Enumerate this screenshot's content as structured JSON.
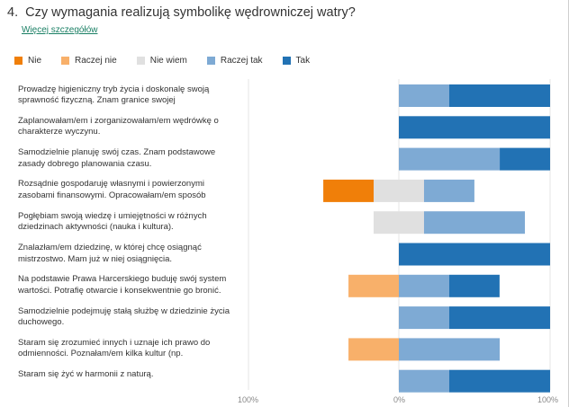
{
  "question": {
    "number": "4.",
    "title": "Czy wymagania realizują symbolikę wędrowniczej watry?",
    "more_link": "Więcej szczegółów"
  },
  "chart_data": {
    "type": "bar",
    "stacked": true,
    "diverging": true,
    "orientation": "horizontal",
    "title": "Czy wymagania realizują symbolikę wędrowniczej watry?",
    "legend_position": "top-left",
    "xlim": [
      -100,
      100
    ],
    "x_ticks": [
      "100%",
      "0%",
      "100%"
    ],
    "categories": [
      "Prowadzę higieniczny tryb życia i doskonalę swoją sprawność fizyczną. Znam granice swojej",
      "Zaplanowałam/em i zorganizowałam/em wędrówkę o charakterze wyczynu.",
      "Samodzielnie planuję swój czas. Znam podstawowe zasady dobrego planowania czasu.",
      "Rozsądnie gospodaruję własnymi i powierzonymi zasobami finansowymi. Opracowałam/em sposób",
      "Pogłębiam swoją wiedzę i umiejętności w różnych dziedzinach aktywności (nauka i kultura).",
      "Znalazłam/em dziedzinę, w której chcę osiągnąć mistrzostwo. Mam już w niej osiągnięcia.",
      "Na podstawie Prawa Harcerskiego buduję swój system wartości. Potrafię otwarcie i konsekwentnie go bronić.",
      "Samodzielnie podejmuję stałą służbę w dziedzinie życia duchowego.",
      "Staram się zrozumieć innych i uznaje ich prawo do odmienności. Poznałam/em kilka kultur (np.",
      "Staram się żyć w harmonii z naturą."
    ],
    "series": [
      {
        "name": "Nie",
        "color": "#f07f09",
        "values": [
          0,
          0,
          0,
          33.3,
          0,
          0,
          0,
          0,
          0,
          0
        ]
      },
      {
        "name": "Raczej nie",
        "color": "#f8b06a",
        "values": [
          0,
          0,
          0,
          0,
          0,
          0,
          33.3,
          0,
          33.3,
          0
        ]
      },
      {
        "name": "Nie wiem",
        "color": "#e0e0e0",
        "values": [
          0,
          0,
          0,
          33.3,
          33.3,
          0,
          0,
          0,
          0,
          0
        ]
      },
      {
        "name": "Raczej tak",
        "color": "#7eaad4",
        "values": [
          33.3,
          0,
          66.7,
          33.3,
          66.7,
          0,
          33.3,
          33.3,
          66.7,
          33.3
        ]
      },
      {
        "name": "Tak",
        "color": "#2272b4",
        "values": [
          66.7,
          100,
          33.3,
          0,
          0,
          100,
          33.3,
          66.7,
          0,
          66.7
        ]
      }
    ]
  }
}
